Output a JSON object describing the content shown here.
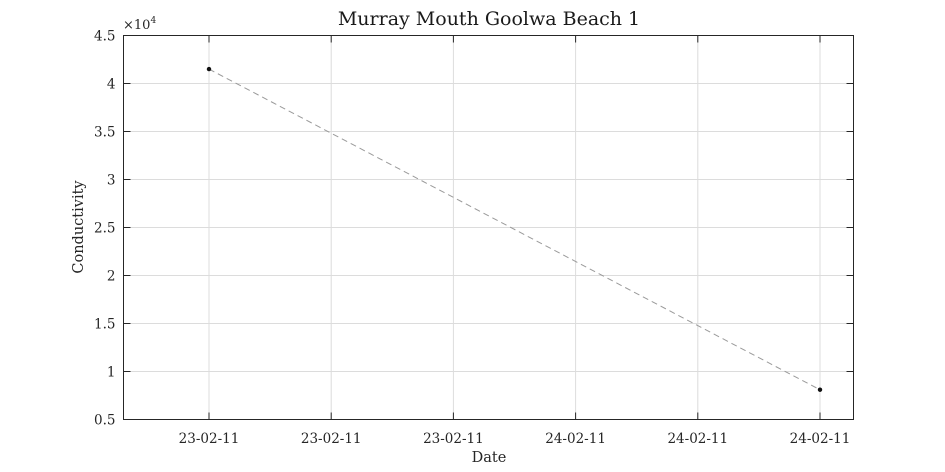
{
  "chart_data": {
    "type": "line",
    "title": "Murray Mouth Goolwa Beach 1",
    "xlabel": "Date",
    "ylabel": "Conductivity",
    "y_exponent_base": "×10",
    "y_exponent_power": "4",
    "ylim": [
      5000,
      45000
    ],
    "y_ticks": [
      5000,
      10000,
      15000,
      20000,
      25000,
      30000,
      35000,
      40000,
      45000
    ],
    "y_tick_labels": [
      "0.5",
      "1",
      "1.5",
      "2",
      "2.5",
      "3",
      "3.5",
      "4",
      "4.5"
    ],
    "x_tick_labels": [
      "23-02-11",
      "23-02-11",
      "23-02-11",
      "24-02-11",
      "24-02-11",
      "24-02-11"
    ],
    "x": [
      "23-02-11",
      "24-02-11"
    ],
    "y": [
      41500,
      8100
    ],
    "series_color": "#9a9a9a",
    "marker_color": "#111111",
    "grid": true
  }
}
